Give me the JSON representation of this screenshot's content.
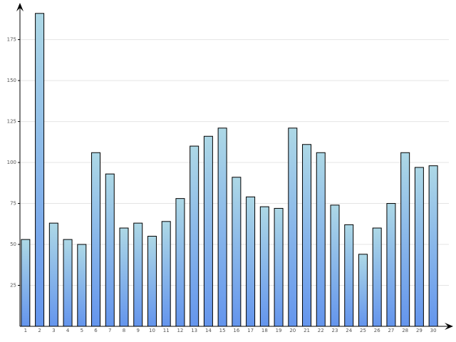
{
  "chart_data": {
    "type": "bar",
    "categories": [
      "1",
      "2",
      "3",
      "4",
      "5",
      "6",
      "7",
      "8",
      "9",
      "10",
      "11",
      "12",
      "13",
      "14",
      "15",
      "16",
      "17",
      "18",
      "19",
      "20",
      "21",
      "22",
      "23",
      "24",
      "25",
      "26",
      "27",
      "28",
      "29",
      "30"
    ],
    "values": [
      53,
      191,
      63,
      53,
      50,
      106,
      93,
      60,
      63,
      55,
      64,
      78,
      110,
      116,
      121,
      91,
      79,
      73,
      72,
      121,
      111,
      106,
      74,
      62,
      44,
      60,
      75,
      106,
      97,
      98
    ],
    "color": [
      "#add8e6",
      "#6495ed"
    ],
    "ylim": [
      0,
      197
    ],
    "yticks": [
      25,
      50,
      75,
      100,
      125,
      150,
      175
    ],
    "grid": true
  }
}
